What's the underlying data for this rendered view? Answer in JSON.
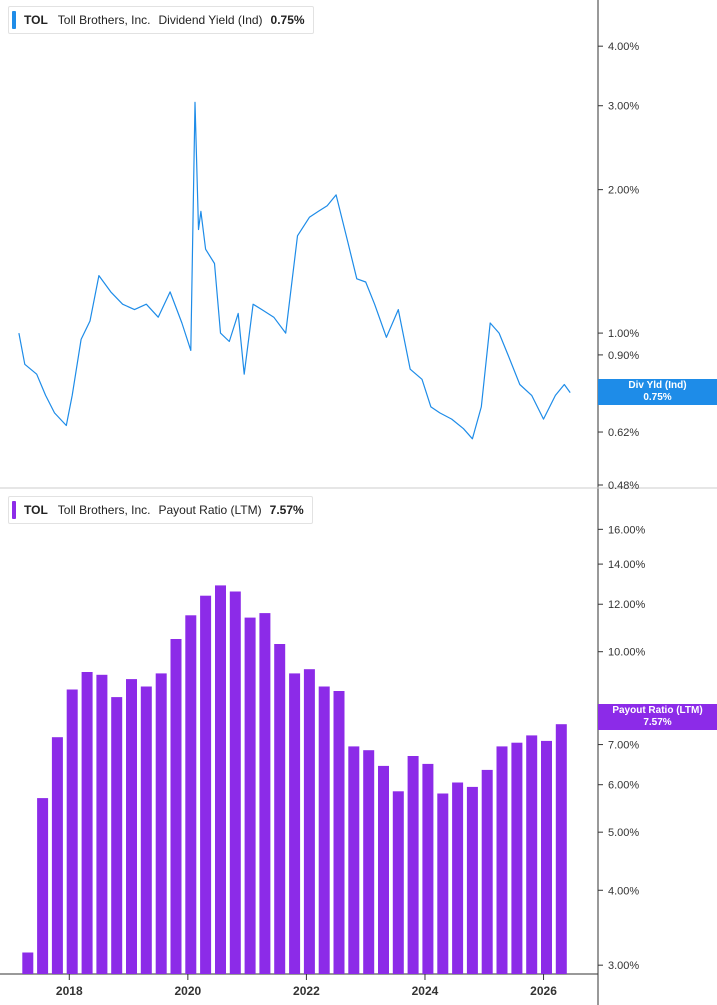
{
  "colors": {
    "yield": "#1e8ce8",
    "payout": "#8c2be8",
    "axis": "#333333",
    "divider": "#cccccc"
  },
  "legends": {
    "top": {
      "ticker": "TOL",
      "company": "Toll Brothers, Inc.",
      "metric": "Dividend Yield (Ind)",
      "value": "0.75%"
    },
    "bottom": {
      "ticker": "TOL",
      "company": "Toll Brothers, Inc.",
      "metric": "Payout Ratio (LTM)",
      "value": "7.57%"
    }
  },
  "tags": {
    "top": {
      "line1": "Div Yld (Ind)",
      "line2": "0.75%"
    },
    "bottom": {
      "line1": "Payout Ratio (LTM)",
      "line2": "7.57%"
    }
  },
  "chart_data": [
    {
      "type": "line",
      "title": "Dividend Yield (Ind)",
      "scale": "log",
      "ylim": [
        0.48,
        5.0
      ],
      "y_ticks": [
        4.0,
        3.0,
        2.0,
        1.0,
        0.9,
        0.62,
        0.48
      ],
      "y_tick_labels": [
        "4.00%",
        "3.00%",
        "2.00%",
        "1.00%",
        "0.90%",
        "0.62%",
        "0.48%"
      ],
      "series": [
        {
          "name": "Div Yld (Ind)",
          "x": [
            2017.15,
            2017.25,
            2017.45,
            2017.6,
            2017.75,
            2017.95,
            2018.05,
            2018.2,
            2018.35,
            2018.5,
            2018.7,
            2018.9,
            2019.1,
            2019.3,
            2019.5,
            2019.7,
            2019.9,
            2020.05,
            2020.12,
            2020.18,
            2020.22,
            2020.3,
            2020.45,
            2020.55,
            2020.7,
            2020.85,
            2020.95,
            2021.1,
            2021.25,
            2021.45,
            2021.65,
            2021.85,
            2022.05,
            2022.2,
            2022.35,
            2022.5,
            2022.7,
            2022.85,
            2023.0,
            2023.15,
            2023.35,
            2023.55,
            2023.75,
            2023.95,
            2024.1,
            2024.25,
            2024.45,
            2024.65,
            2024.8,
            2024.95,
            2025.1,
            2025.25,
            2025.4,
            2025.6,
            2025.8,
            2026.0,
            2026.2,
            2026.35,
            2026.45
          ],
          "y": [
            1.0,
            0.86,
            0.82,
            0.74,
            0.68,
            0.64,
            0.74,
            0.97,
            1.06,
            1.32,
            1.22,
            1.15,
            1.12,
            1.15,
            1.08,
            1.22,
            1.05,
            0.92,
            3.05,
            1.65,
            1.8,
            1.5,
            1.4,
            1.0,
            0.96,
            1.1,
            0.82,
            1.15,
            1.12,
            1.08,
            1.0,
            1.6,
            1.75,
            1.8,
            1.85,
            1.95,
            1.55,
            1.3,
            1.28,
            1.15,
            0.98,
            1.12,
            0.84,
            0.8,
            0.7,
            0.68,
            0.66,
            0.63,
            0.6,
            0.7,
            1.05,
            1.0,
            0.9,
            0.78,
            0.74,
            0.66,
            0.74,
            0.78,
            0.75
          ]
        }
      ]
    },
    {
      "type": "bar",
      "title": "Payout Ratio (LTM)",
      "scale": "log",
      "ylim": [
        2.9,
        17.5
      ],
      "y_ticks": [
        16.0,
        14.0,
        12.0,
        10.0,
        8.0,
        7.0,
        6.0,
        5.0,
        4.0,
        3.0
      ],
      "y_tick_labels": [
        "16.00%",
        "14.00%",
        "12.00%",
        "10.00%",
        "8.00%",
        "7.00%",
        "6.00%",
        "5.00%",
        "4.00%",
        "3.00%"
      ],
      "x_ticks": [
        2018,
        2020,
        2022,
        2024,
        2026
      ],
      "x_tick_labels": [
        "2018",
        "2020",
        "2022",
        "2024",
        "2026"
      ],
      "series": [
        {
          "name": "Payout Ratio (LTM)",
          "x": [
            2017.3,
            2017.55,
            2017.8,
            2018.05,
            2018.3,
            2018.55,
            2018.8,
            2019.05,
            2019.3,
            2019.55,
            2019.8,
            2020.05,
            2020.3,
            2020.55,
            2020.8,
            2021.05,
            2021.3,
            2021.55,
            2021.8,
            2022.05,
            2022.3,
            2022.55,
            2022.8,
            2023.05,
            2023.3,
            2023.55,
            2023.8,
            2024.05,
            2024.3,
            2024.55,
            2024.8,
            2025.05,
            2025.3,
            2025.55,
            2025.8,
            2026.05,
            2026.3
          ],
          "values": [
            3.15,
            5.7,
            7.2,
            8.65,
            9.25,
            9.15,
            8.4,
            9.0,
            8.75,
            9.2,
            10.5,
            11.5,
            12.4,
            12.9,
            12.6,
            11.4,
            11.6,
            10.3,
            9.2,
            9.35,
            8.75,
            8.6,
            6.95,
            6.85,
            6.45,
            5.85,
            6.7,
            6.5,
            5.8,
            6.05,
            5.95,
            6.35,
            6.95,
            7.05,
            7.25,
            7.1,
            7.57
          ]
        }
      ]
    }
  ]
}
